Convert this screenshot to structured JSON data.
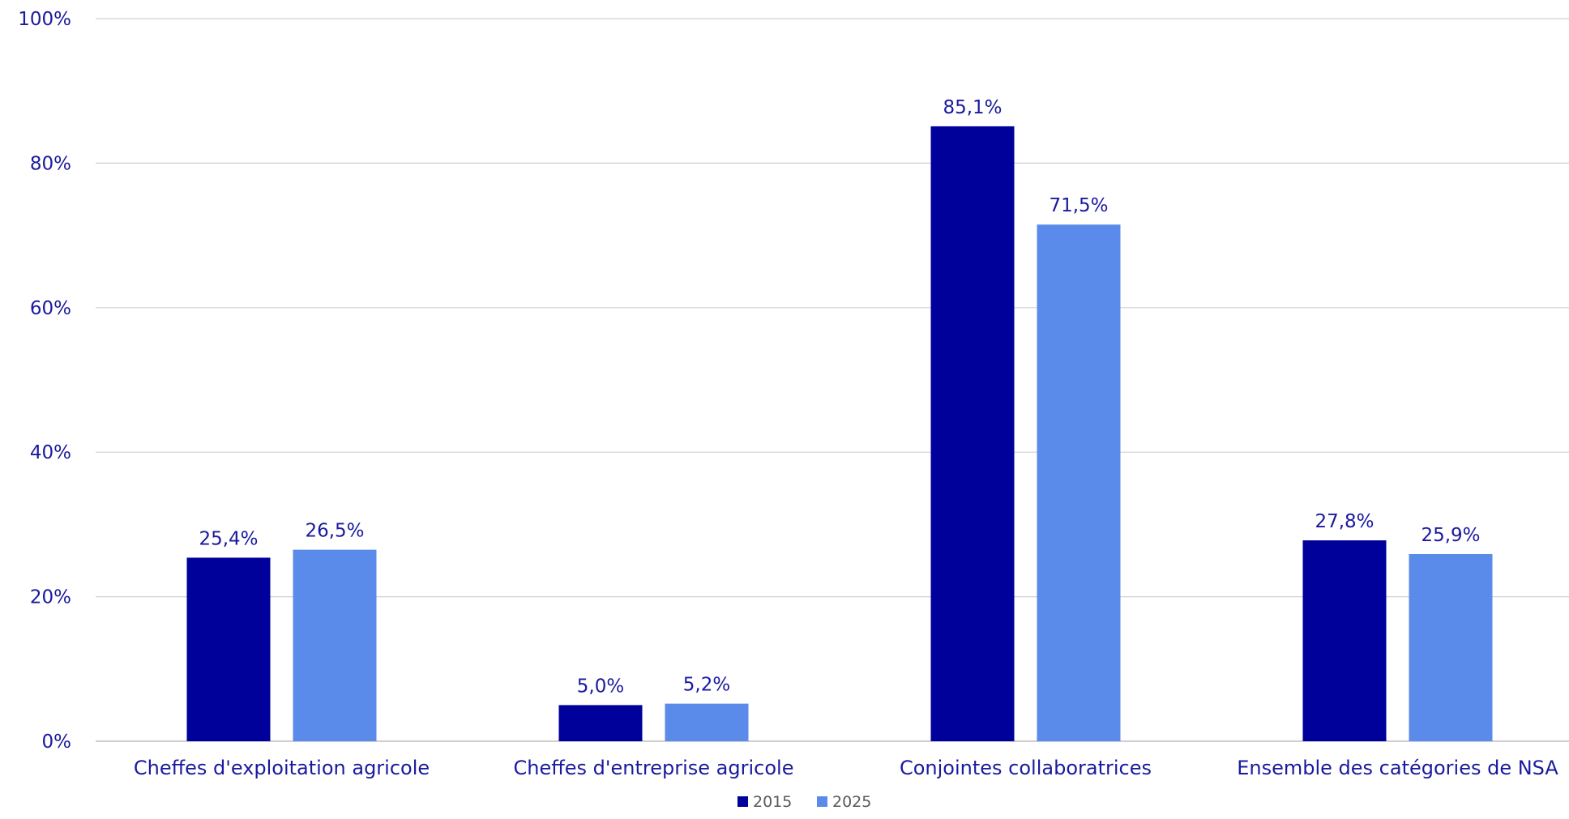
{
  "chart_data": {
    "type": "bar",
    "title": "",
    "xlabel": "",
    "ylabel": "",
    "ylim": [
      0,
      100
    ],
    "y_ticks": [
      0,
      20,
      40,
      60,
      80,
      100
    ],
    "y_tick_labels": [
      "0%",
      "20%",
      "40%",
      "60%",
      "80%",
      "100%"
    ],
    "grid": true,
    "legend_position": "bottom-center",
    "categories": [
      "Cheffes d'exploitation agricole",
      "Cheffes d'entreprise agricole",
      "Conjointes collaboratrices",
      "Ensemble des catégories de NSA"
    ],
    "series": [
      {
        "name": "2015",
        "color": "#00009A",
        "values": [
          25.4,
          5.0,
          85.1,
          27.8
        ],
        "labels": [
          "25,4%",
          "5,0%",
          "85,1%",
          "27,8%"
        ]
      },
      {
        "name": "2025",
        "color": "#5B8BEA",
        "values": [
          26.5,
          5.2,
          71.5,
          25.9
        ],
        "labels": [
          "26,5%",
          "5,2%",
          "71,5%",
          "25,9%"
        ]
      }
    ],
    "colors": {
      "text": "#1A1A9E",
      "grid": "#D0D0D0",
      "axis": "#BFBFBF",
      "legend_text": "#595959"
    }
  }
}
